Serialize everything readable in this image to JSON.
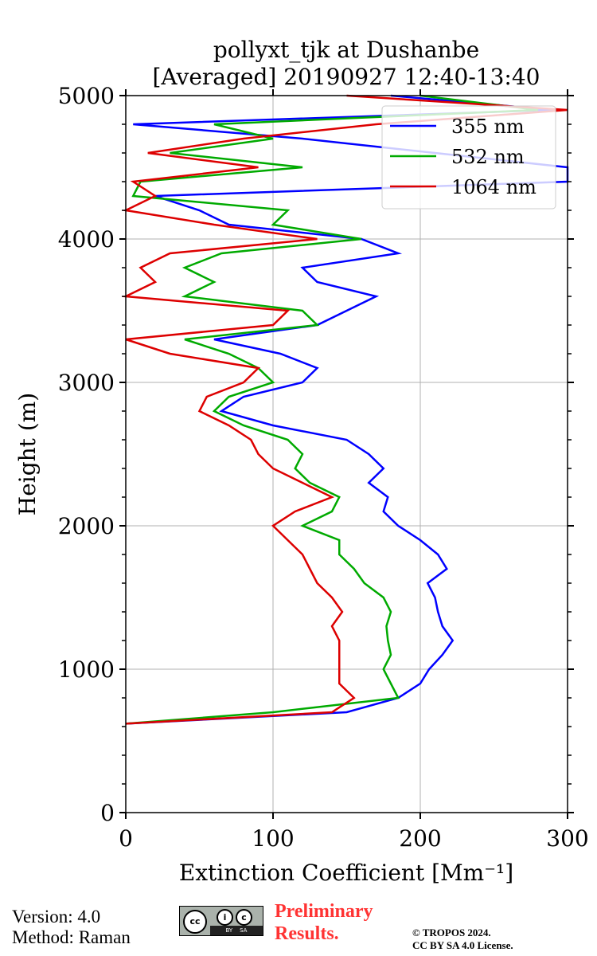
{
  "chart_data": {
    "type": "line",
    "title_line1": "pollyxt_tjk at Dushanbe",
    "title_line2": "[Averaged] 20190927 12:40-13:40",
    "xlabel": "Extinction Coefficient [Mm⁻¹]",
    "ylabel": "Height (m)",
    "xlim": [
      0,
      300
    ],
    "ylim": [
      0,
      5000
    ],
    "xticks": [
      "0",
      "100",
      "200",
      "300"
    ],
    "yticks": [
      "0",
      "1000",
      "2000",
      "3000",
      "4000",
      "5000"
    ],
    "grid": true,
    "legend_position": "top-right",
    "height": [
      620,
      700,
      800,
      900,
      1000,
      1100,
      1200,
      1300,
      1400,
      1500,
      1600,
      1700,
      1800,
      1900,
      2000,
      2100,
      2200,
      2300,
      2400,
      2500,
      2600,
      2700,
      2800,
      2900,
      3000,
      3100,
      3200,
      3300,
      3400,
      3500,
      3600,
      3700,
      3800,
      3900,
      4000,
      4100,
      4200,
      4300,
      4400,
      4500,
      4600,
      4700,
      4800,
      4900,
      5000
    ],
    "series": [
      {
        "name": "355 nm",
        "color": "#0000ff",
        "values": [
          0,
          150,
          185,
          200,
          206,
          215,
          222,
          215,
          212,
          210,
          205,
          218,
          212,
          200,
          185,
          175,
          178,
          165,
          175,
          165,
          150,
          100,
          65,
          80,
          120,
          130,
          105,
          60,
          130,
          150,
          170,
          130,
          120,
          185,
          160,
          70,
          50,
          20,
          300,
          300,
          210,
          120,
          5,
          290,
          180
        ]
      },
      {
        "name": "532 nm",
        "color": "#00aa00",
        "values": [
          0,
          100,
          185,
          180,
          175,
          180,
          178,
          177,
          180,
          175,
          162,
          155,
          145,
          145,
          120,
          140,
          145,
          125,
          115,
          120,
          110,
          80,
          60,
          70,
          100,
          90,
          70,
          40,
          130,
          120,
          40,
          60,
          40,
          65,
          160,
          100,
          110,
          5,
          10,
          120,
          30,
          100,
          60,
          280,
          200
        ]
      },
      {
        "name": "1064 nm",
        "color": "#dd0000",
        "values": [
          0,
          140,
          155,
          145,
          145,
          145,
          145,
          140,
          147,
          140,
          130,
          125,
          120,
          110,
          100,
          115,
          140,
          120,
          100,
          90,
          85,
          70,
          50,
          55,
          80,
          90,
          30,
          0,
          100,
          110,
          0,
          20,
          10,
          30,
          130,
          60,
          0,
          20,
          5,
          90,
          15,
          80,
          170,
          300,
          150
        ]
      }
    ]
  },
  "footer": {
    "version": "Version: 4.0",
    "method": "Method: Raman",
    "preliminary_line1": "Preliminary",
    "preliminary_line2": "Results.",
    "copyright_line1": "© TROPOS 2024.",
    "copyright_line2": "CC BY SA 4.0 License.",
    "license_badge": "cc BY SA"
  }
}
